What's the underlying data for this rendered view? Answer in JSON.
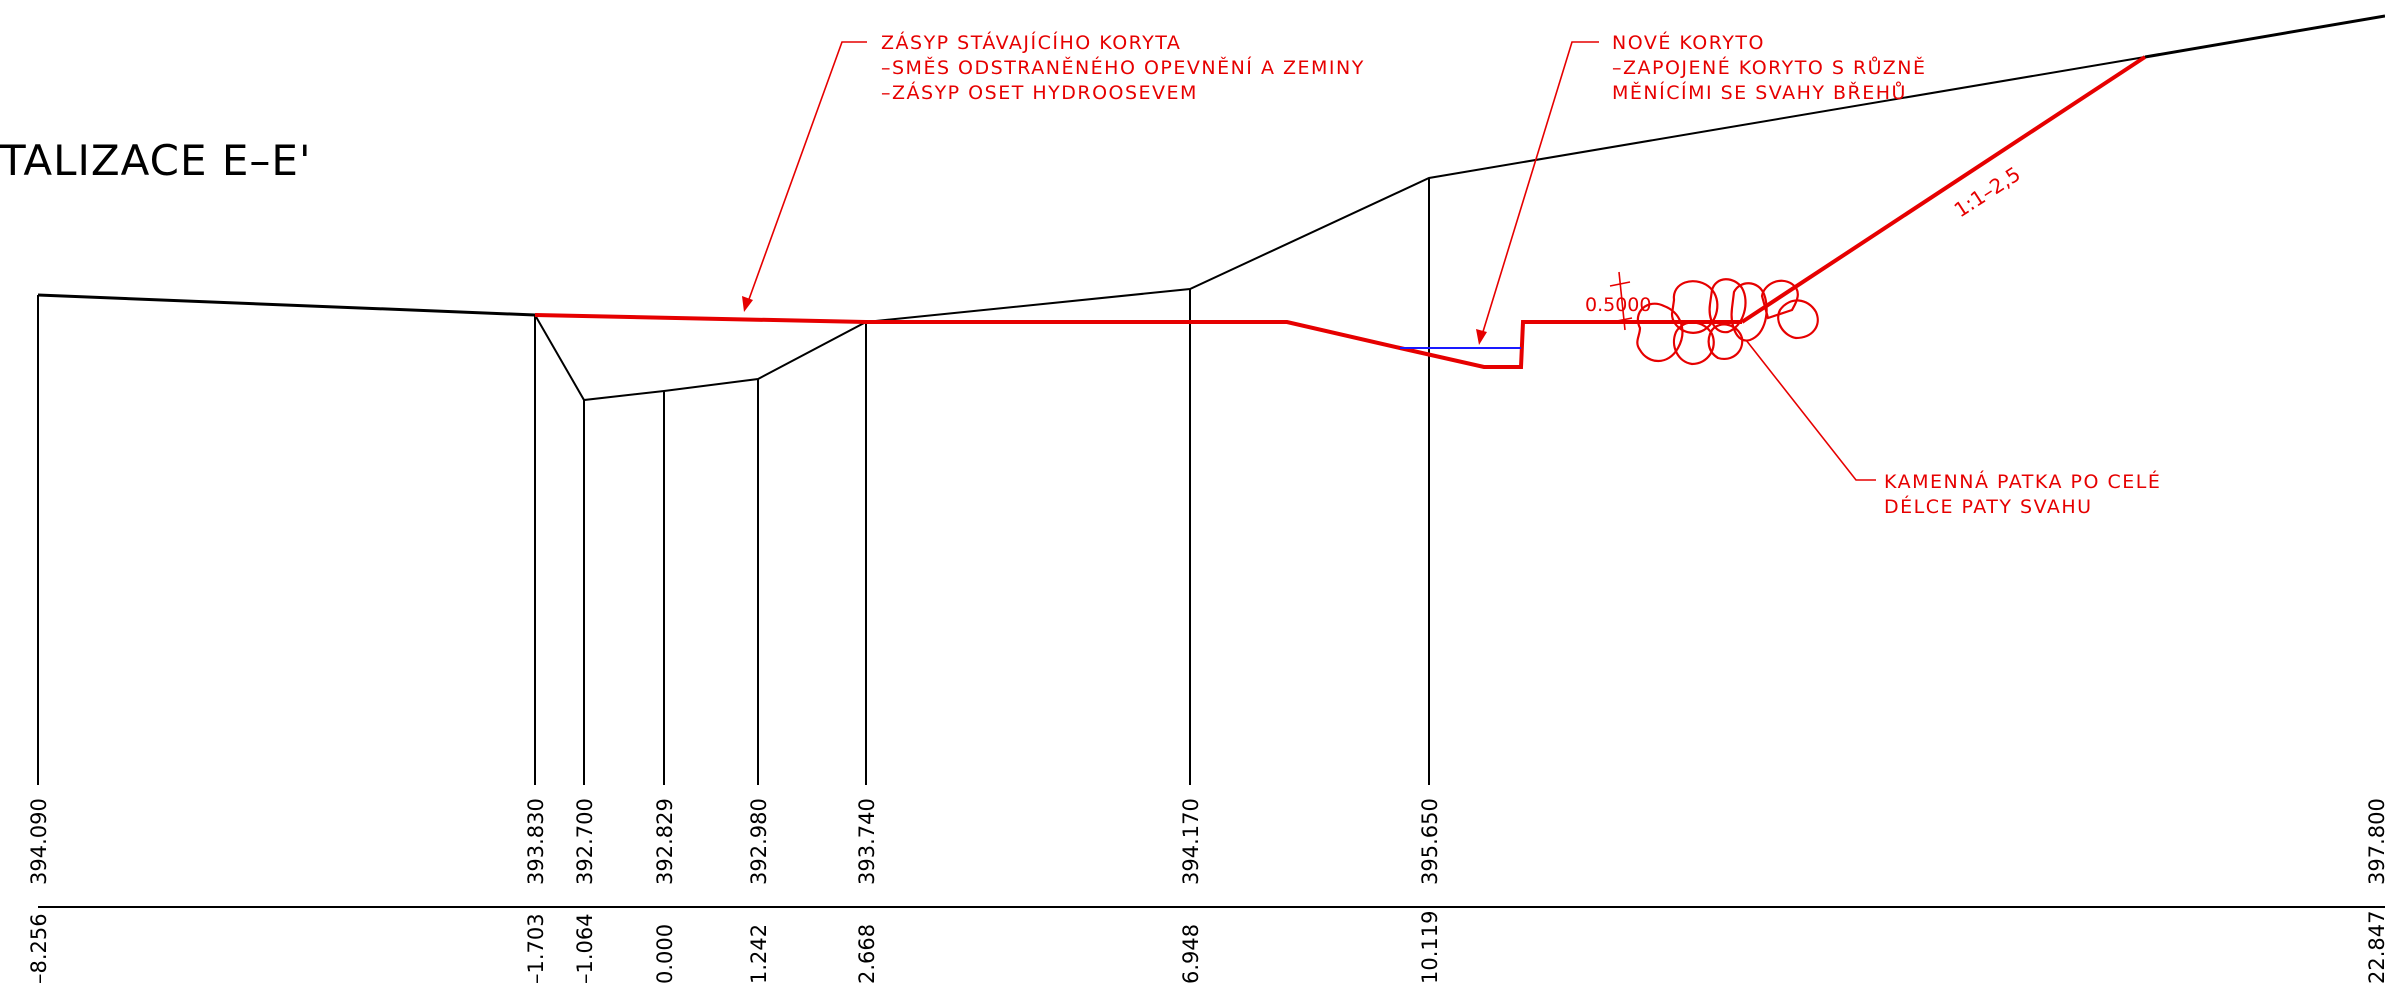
{
  "title": "TALIZACE E–E'",
  "notes": {
    "backfill": [
      "ZÁSYP STÁVAJÍCÍHO KORYTA",
      "–SMĚS ODSTRANĚNÉHO OPEVNĚNÍ A ZEMINY",
      "–ZÁSYP OSET HYDROOSEVEM"
    ],
    "new_channel": [
      "NOVÉ KORYTO",
      "–ZAPOJENÉ KORYTO S RŮZNĚ",
      "MĚNÍCÍMI SE SVAHY BŘEHŮ"
    ],
    "stone_toe": [
      "KAMENNÁ PATKA PO CELÉ",
      "DÉLCE PATY SVAHU"
    ]
  },
  "dimension_label": "0.5000",
  "slope_label": "1:1–2,5",
  "profile": {
    "elevations": [
      "394.090",
      "393.830",
      "392.700",
      "392.829",
      "392.980",
      "393.740",
      "394.170",
      "395.650",
      "397.800"
    ],
    "stations": [
      "–8.256",
      "–1.703",
      "–1.064",
      "0.000",
      "1.242",
      "2.668",
      "6.948",
      "10.119",
      "22.847"
    ]
  },
  "colors": {
    "existing": "#000000",
    "proposed": "#e60000",
    "water": "#1a1aff"
  }
}
